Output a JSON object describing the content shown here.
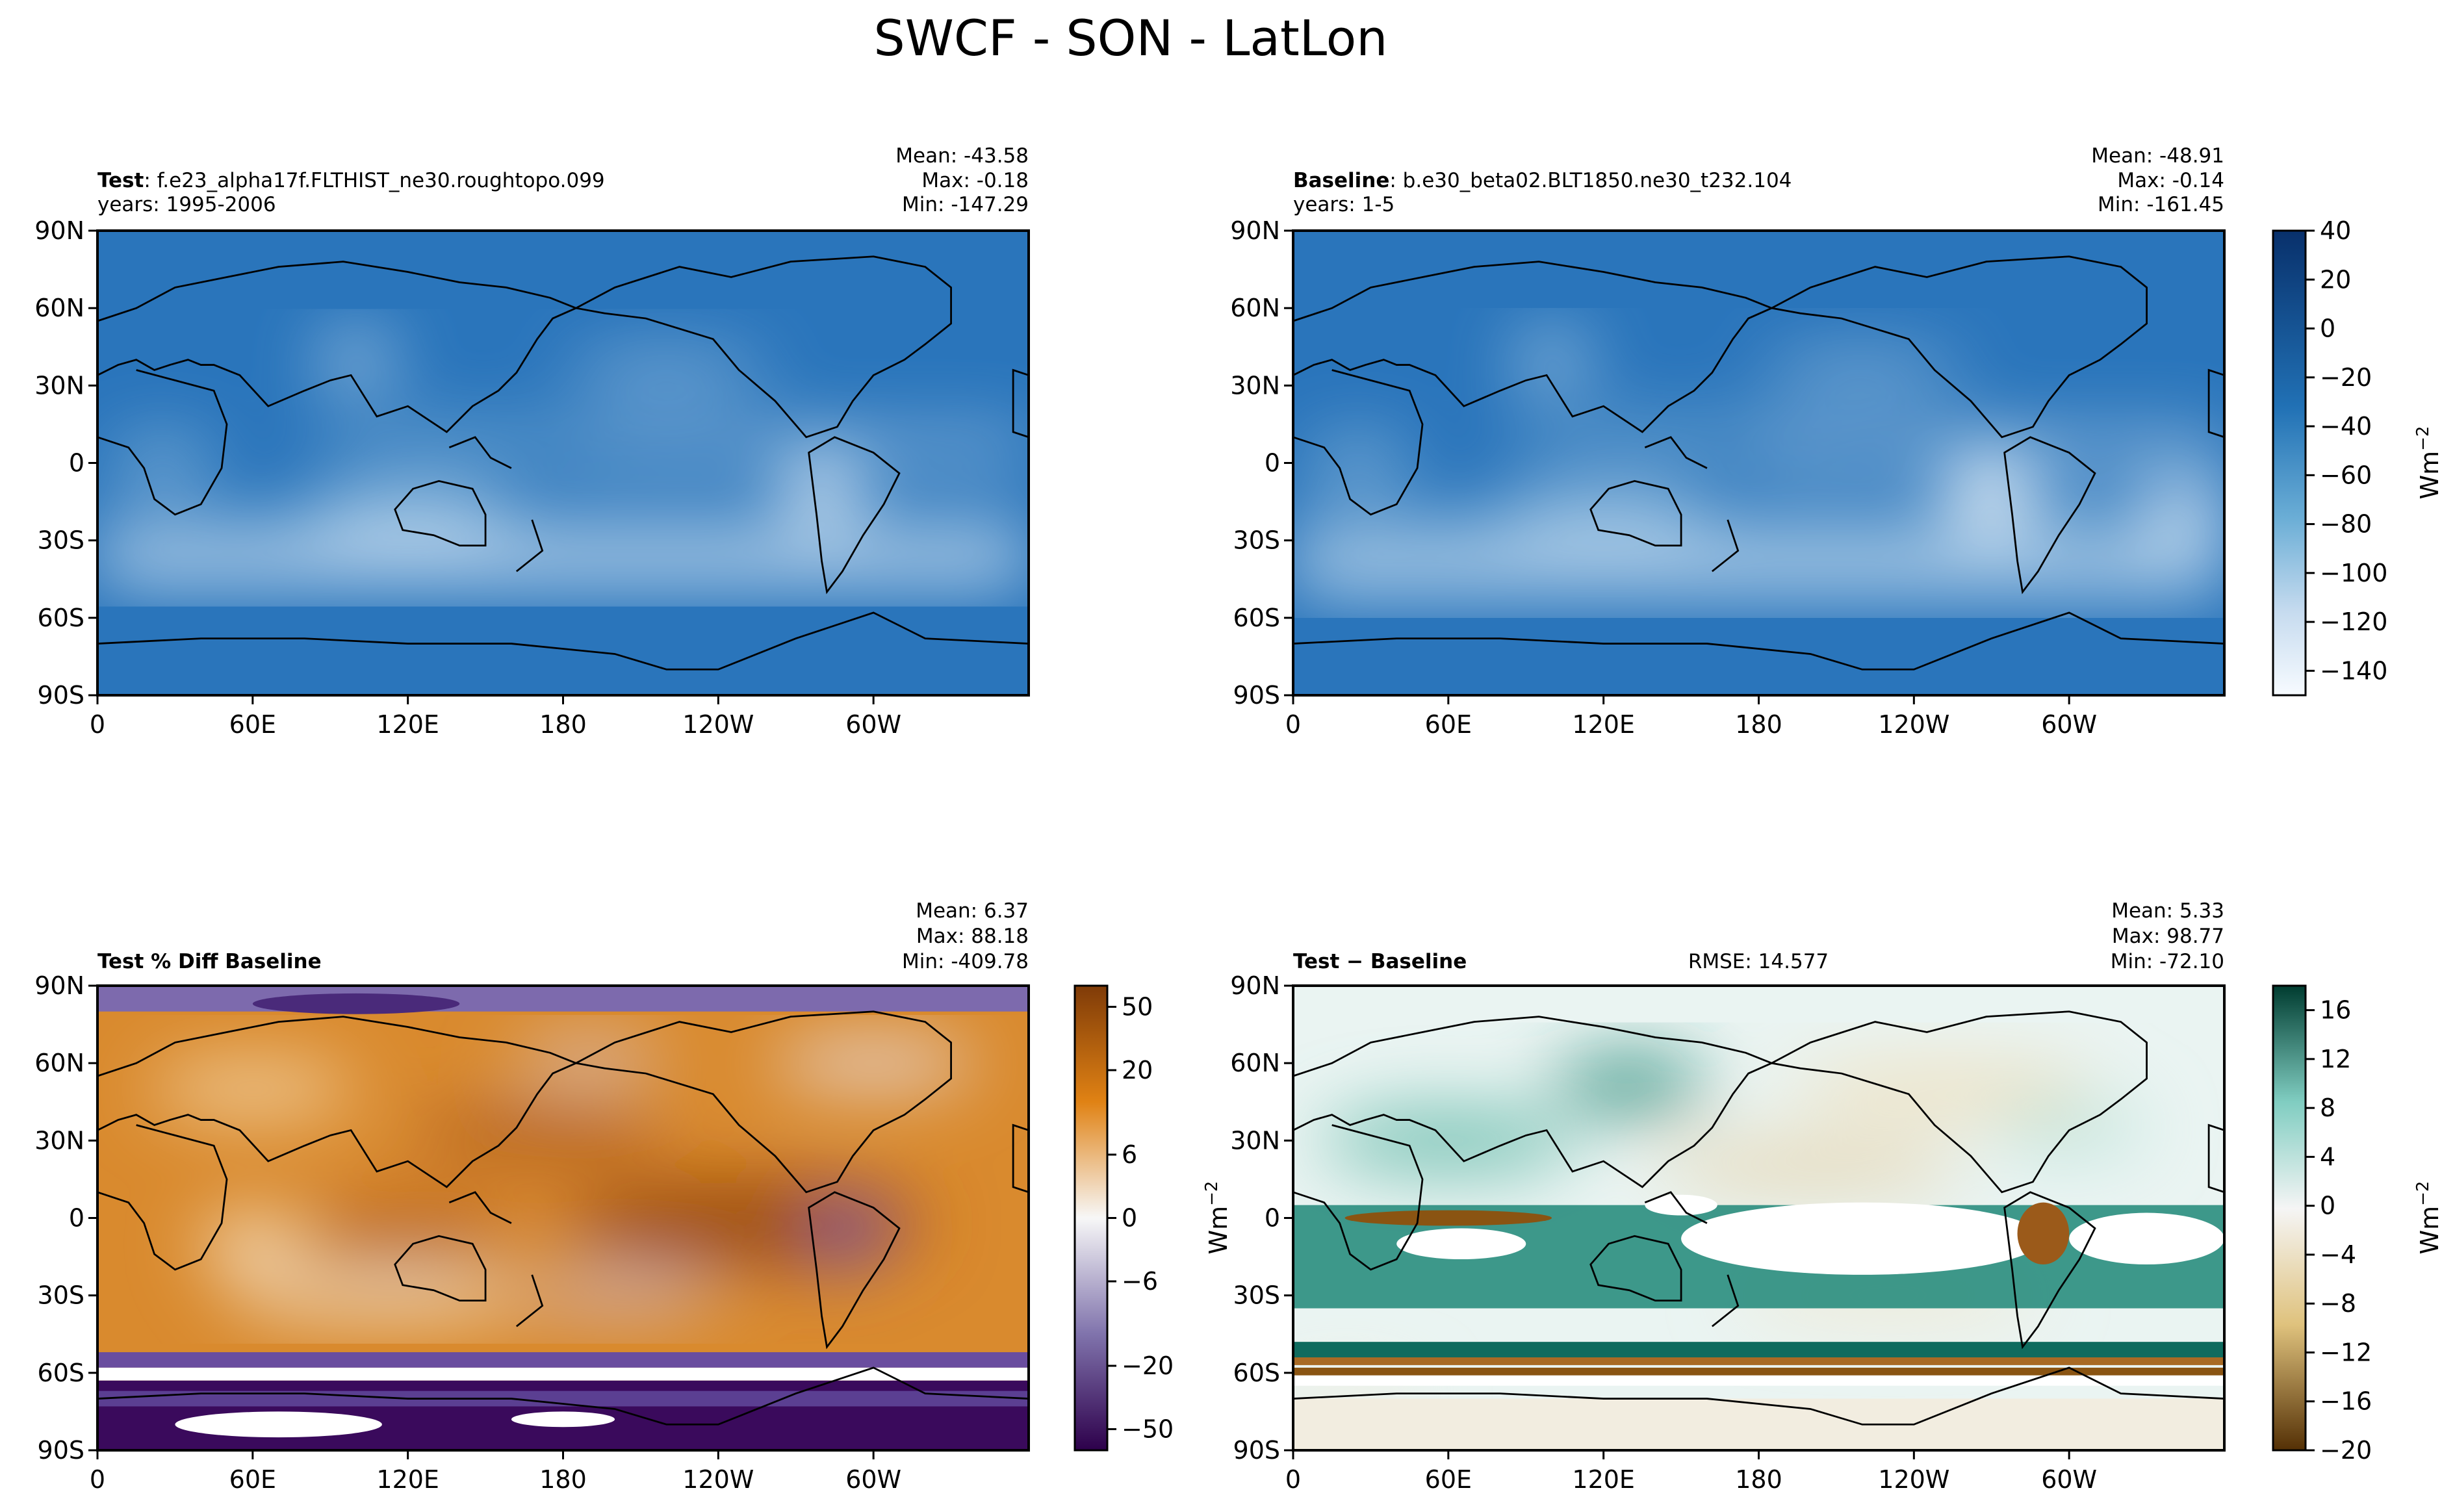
{
  "figure": {
    "title": "SWCF - SON - LatLon",
    "lat_ticks": [
      "90N",
      "60N",
      "30N",
      "0",
      "30S",
      "60S",
      "90S"
    ],
    "lon_ticks": [
      "0",
      "60E",
      "120E",
      "180",
      "120W",
      "60W"
    ],
    "unit_label": "Wm",
    "unit_exponent": "−2"
  },
  "chart_data": [
    {
      "type": "heatmap",
      "panel": "test",
      "label_bold": "Test",
      "label_rest": ": f.e23_alpha17f.FLTHIST_ne30.roughtopo.099",
      "years": "years: 1995-2006",
      "stats": {
        "mean": "Mean: -43.58",
        "max": "Max: -0.18",
        "min": "Min: -147.29"
      },
      "colormap": "Blues_r",
      "colors": [
        "#f7fbff",
        "#08306b"
      ],
      "vmin": -150,
      "vmax": 40
    },
    {
      "type": "heatmap",
      "panel": "baseline",
      "label_bold": "Baseline",
      "label_rest": ": b.e30_beta02.BLT1850.ne30_t232.104",
      "years": "years: 1-5",
      "stats": {
        "mean": "Mean: -48.91",
        "max": "Max: -0.14",
        "min": "Min: -161.45"
      },
      "colormap": "Blues_r",
      "colors": [
        "#f7fbff",
        "#08306b"
      ],
      "vmin": -150,
      "vmax": 40,
      "colorbar_ticks": [
        "40",
        "20",
        "0",
        "−20",
        "−40",
        "−60",
        "−80",
        "−100",
        "−120",
        "−140"
      ],
      "colorbar_values": [
        40,
        20,
        0,
        -20,
        -40,
        -60,
        -80,
        -100,
        -120,
        -140
      ]
    },
    {
      "type": "heatmap",
      "panel": "pct_diff",
      "label_bold": "Test % Diff Baseline",
      "stats": {
        "mean": "Mean:  6.37",
        "max": "Max: 88.18",
        "min": "Min: -409.78"
      },
      "colormap": "PuOr_r",
      "colors": [
        "#2d004b",
        "#f7f7f7",
        "#7f3b08"
      ],
      "levels": [
        -100,
        -50,
        -40,
        -30,
        -20,
        -15,
        -10,
        -8,
        -6,
        -4,
        -2,
        0,
        2,
        4,
        6,
        8,
        10,
        15,
        20,
        30,
        40,
        50,
        100
      ],
      "colorbar_ticks": [
        "50",
        "20",
        "6",
        "0",
        "−6",
        "−20",
        "−50"
      ],
      "colorbar_values": [
        50,
        20,
        6,
        0,
        -6,
        -20,
        -50
      ]
    },
    {
      "type": "heatmap",
      "panel": "diff",
      "label_bold": "Test − Baseline",
      "rmse": "RMSE: 14.577",
      "stats": {
        "mean": "Mean:  5.33",
        "max": "Max: 98.77",
        "min": "Min: -72.10"
      },
      "colormap": "BrBG",
      "colors": [
        "#543005",
        "#f5f5f5",
        "#003c30"
      ],
      "vmin": -20,
      "vmax": 18,
      "colorbar_ticks": [
        "16",
        "12",
        "8",
        "4",
        "0",
        "−4",
        "−8",
        "−12",
        "−16",
        "−20"
      ],
      "colorbar_values": [
        16,
        12,
        8,
        4,
        0,
        -4,
        -8,
        -12,
        -16,
        -20
      ]
    }
  ]
}
